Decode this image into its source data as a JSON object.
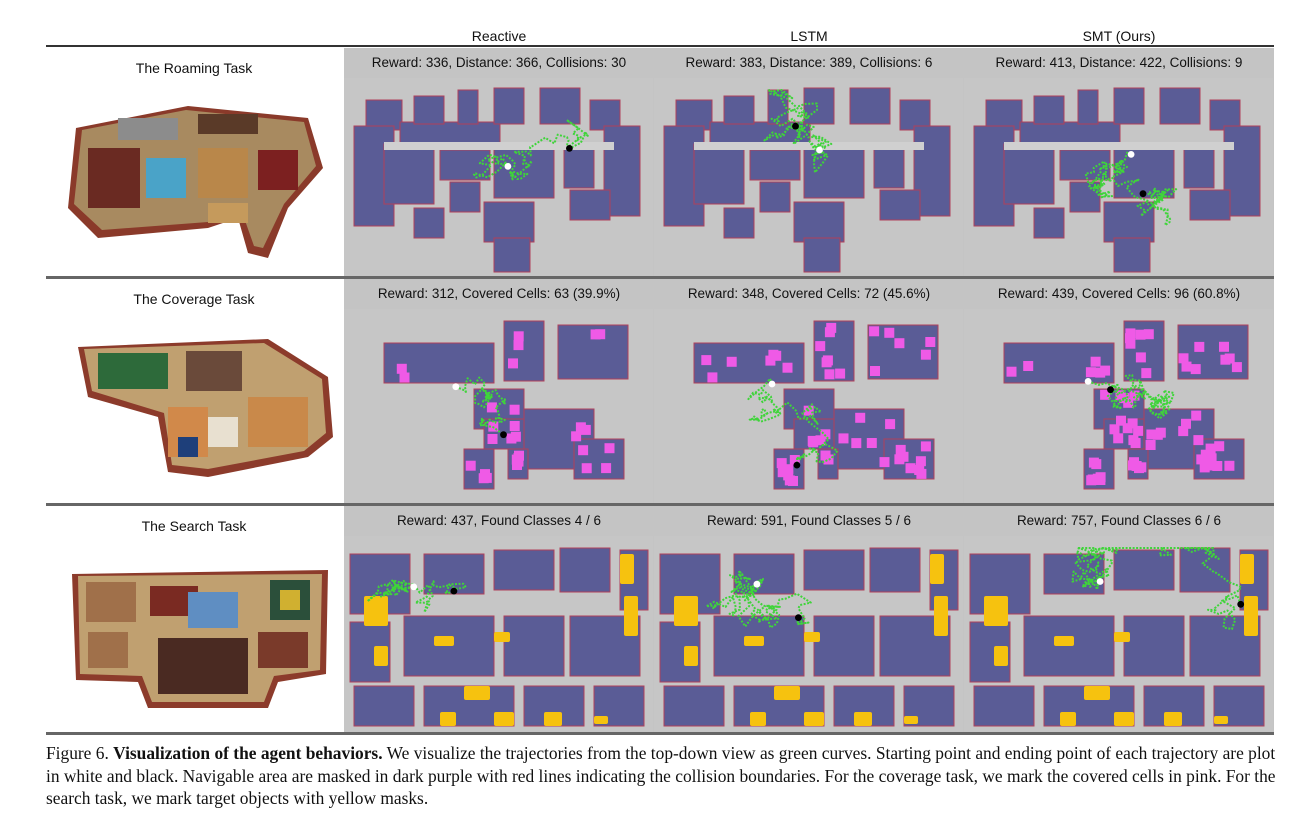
{
  "columns": [
    "Reactive",
    "LSTM",
    "SMT (Ours)"
  ],
  "rows": [
    {
      "task": "The Roaming Task",
      "captions": [
        "Reward: 336, Distance: 366, Collisions: 30",
        "Reward: 383, Distance: 389, Collisions: 6",
        "Reward: 413, Distance: 422, Collisions: 9"
      ]
    },
    {
      "task": "The Coverage Task",
      "captions": [
        "Reward: 312, Covered Cells: 63 (39.9%)",
        "Reward: 348, Covered Cells: 72 (45.6%)",
        "Reward: 439, Covered Cells: 96 (60.8%)"
      ]
    },
    {
      "task": "The Search Task",
      "captions": [
        "Reward: 437, Found Classes 4 / 6",
        "Reward: 591, Found Classes 5 / 6",
        "Reward: 757, Found Classes 6 / 6"
      ]
    }
  ],
  "figure_caption": {
    "label": "Figure 6.",
    "title": "Visualization of the agent behaviors.",
    "body": "We visualize the trajectories from the top-down view as green curves. Starting point and ending point of each trajectory are plot in white and black. Navigable area are masked in dark purple with red lines indicating the collision boundaries. For the coverage task, we mark the covered cells in pink. For the search task, we mark target objects with yellow masks."
  },
  "colors": {
    "navigable": "#5a5c96",
    "boundary": "#b0405a",
    "trajectory": "#3fd43a",
    "covered": "#ef5ae6",
    "target": "#f6c20f",
    "background": "#c6c6c6"
  }
}
